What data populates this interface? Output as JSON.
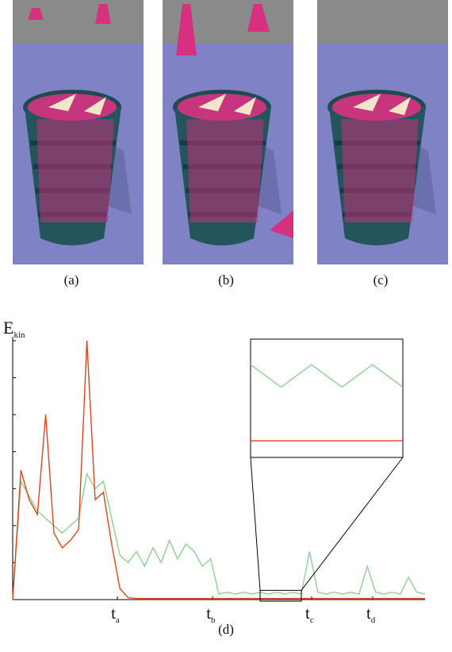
{
  "panels": [
    {
      "caption": "(a)"
    },
    {
      "caption": "(b)"
    },
    {
      "caption": "(c)"
    }
  ],
  "chart_data": {
    "type": "line",
    "caption": "(d)",
    "ylabel": {
      "text": "E",
      "subscript": "kin"
    },
    "xlim": [
      0,
      100
    ],
    "ylim": [
      0,
      7
    ],
    "yticks": [
      0,
      1,
      2,
      3,
      4,
      5,
      6,
      7
    ],
    "xticks": [
      {
        "value": 25.4,
        "label": "t",
        "subscript": "a"
      },
      {
        "value": 48.5,
        "label": "t",
        "subscript": "b"
      },
      {
        "value": 72.5,
        "label": "t",
        "subscript": "c"
      },
      {
        "value": 87.3,
        "label": "t",
        "subscript": "d"
      }
    ],
    "x": [
      0,
      2,
      4,
      6,
      8,
      10,
      12,
      14,
      16,
      18,
      20,
      22,
      24,
      26,
      28,
      30,
      32,
      34,
      36,
      38,
      40,
      42,
      44,
      46,
      48,
      50,
      52,
      54,
      56,
      58,
      60,
      62,
      64,
      66,
      68,
      70,
      72,
      74,
      76,
      78,
      80,
      82,
      84,
      86,
      88,
      90,
      92,
      94,
      96,
      98,
      100
    ],
    "series": [
      {
        "color": "#8fd08f",
        "values": [
          0,
          3.2,
          2.8,
          2.4,
          2.2,
          2.0,
          1.8,
          2.0,
          2.2,
          3.4,
          3.0,
          3.2,
          2.2,
          1.2,
          1.0,
          1.3,
          0.9,
          1.4,
          1.0,
          1.6,
          1.1,
          1.5,
          1.3,
          0.9,
          1.1,
          0.15,
          0.2,
          0.15,
          0.2,
          0.15,
          0.2,
          0.15,
          0.2,
          0.15,
          0.2,
          0.15,
          1.3,
          0.2,
          0.15,
          0.2,
          0.15,
          0.2,
          0.15,
          0.9,
          0.2,
          0.15,
          0.2,
          0.15,
          0.6,
          0.2,
          0.15
        ]
      },
      {
        "color": "#e0441c",
        "values": [
          0,
          3.5,
          2.7,
          2.3,
          5.0,
          1.8,
          1.4,
          1.6,
          1.9,
          7.0,
          2.7,
          2.9,
          1.5,
          0.3,
          0.05,
          0.03,
          0.03,
          0.03,
          0.03,
          0.03,
          0.03,
          0.03,
          0.03,
          0.03,
          0.03,
          0.03,
          0.03,
          0.03,
          0.03,
          0.03,
          0.03,
          0.03,
          0.03,
          0.03,
          0.03,
          0.03,
          0.03,
          0.03,
          0.03,
          0.03,
          0.03,
          0.03,
          0.03,
          0.03,
          0.03,
          0.03,
          0.03,
          0.03,
          0.03,
          0.03,
          0.03
        ]
      }
    ],
    "inset_xlim": [
      60,
      70
    ],
    "inset_ylim": [
      0,
      0.25
    ]
  }
}
